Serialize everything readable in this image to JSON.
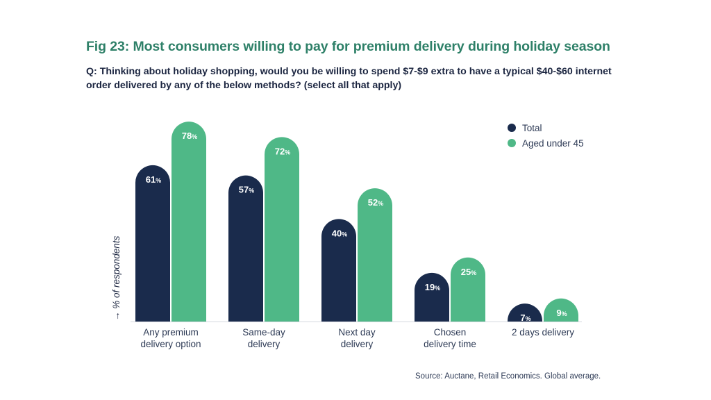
{
  "title": "Fig 23: Most consumers willing to pay for premium delivery during holiday season",
  "question": "Q: Thinking about holiday shopping, would you be willing to spend $7-$9 extra to have a typical $40-$60 internet order delivered by any of the below methods? (select all that apply)",
  "source": "Source: Auctane, Retail Economics. Global average.",
  "chart_data": {
    "type": "bar",
    "title": "Fig 23: Most consumers willing to pay for premium delivery during holiday season",
    "xlabel": "",
    "ylabel": "→ % of respondents",
    "ylim": [
      0,
      78
    ],
    "grid": false,
    "legend_position": "top-right",
    "categories": [
      [
        "Any premium",
        "delivery option"
      ],
      [
        "Same-day",
        "delivery"
      ],
      [
        "Next day",
        "delivery"
      ],
      [
        "Chosen",
        "delivery time"
      ],
      [
        "2 days delivery"
      ]
    ],
    "series": [
      {
        "name": "Total",
        "color": "#1a2b4c",
        "values": [
          61,
          57,
          40,
          19,
          7
        ]
      },
      {
        "name": "Aged under 45",
        "color": "#4fb887",
        "values": [
          78,
          72,
          52,
          25,
          9
        ]
      }
    ],
    "value_suffix": "%"
  }
}
